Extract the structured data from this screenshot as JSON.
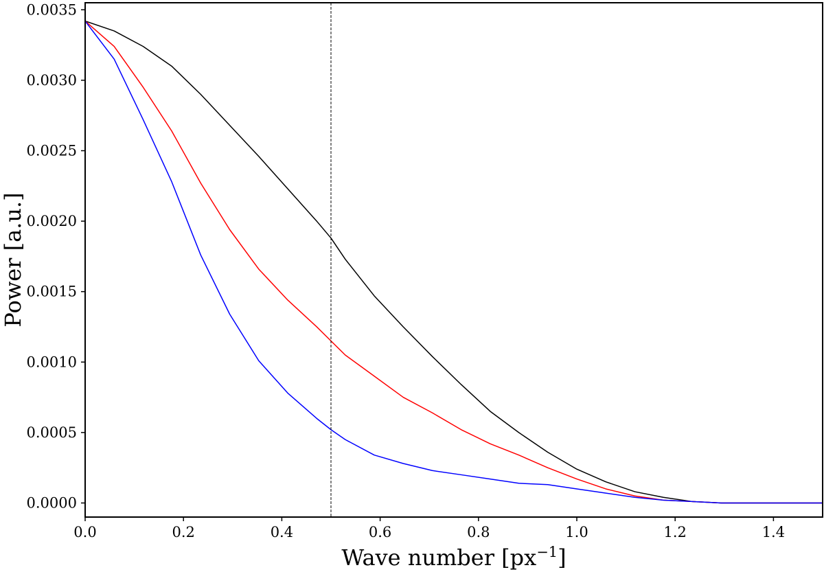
{
  "chart_data": {
    "type": "line",
    "xlabel": "Wave number [px",
    "xlabel_superscript": "−1",
    "xlabel_suffix": "]",
    "ylabel": "Power [a.u.]",
    "xlim": [
      0.0,
      1.5
    ],
    "ylim": [
      -0.0001,
      0.00355
    ],
    "xticks": [
      0.0,
      0.2,
      0.4,
      0.6,
      0.8,
      1.0,
      1.2,
      1.4
    ],
    "xtick_labels": [
      "0.0",
      "0.2",
      "0.4",
      "0.6",
      "0.8",
      "1.0",
      "1.2",
      "1.4"
    ],
    "yticks": [
      0.0,
      0.0005,
      0.001,
      0.0015,
      0.002,
      0.0025,
      0.003,
      0.0035
    ],
    "ytick_labels": [
      "0.0000",
      "0.0005",
      "0.0010",
      "0.0015",
      "0.0020",
      "0.0025",
      "0.0030",
      "0.0035"
    ],
    "grid": false,
    "vline": {
      "x": 0.5,
      "style": "dashed",
      "color": "#000000"
    },
    "series": [
      {
        "color": "#000000",
        "x": [
          0.0,
          0.059,
          0.118,
          0.176,
          0.235,
          0.294,
          0.353,
          0.412,
          0.471,
          0.5,
          0.529,
          0.588,
          0.647,
          0.706,
          0.765,
          0.824,
          0.882,
          0.941,
          1.0,
          1.059,
          1.118,
          1.176,
          1.235,
          1.294,
          1.353,
          1.412,
          1.5
        ],
        "values": [
          0.00342,
          0.00335,
          0.00324,
          0.0031,
          0.0029,
          0.00268,
          0.00246,
          0.00223,
          0.002,
          0.00188,
          0.00173,
          0.00147,
          0.00125,
          0.00104,
          0.00084,
          0.00065,
          0.0005,
          0.00036,
          0.00024,
          0.00015,
          8e-05,
          4e-05,
          1e-05,
          0.0,
          0.0,
          0.0,
          0.0
        ]
      },
      {
        "color": "#ff0000",
        "x": [
          0.0,
          0.059,
          0.118,
          0.176,
          0.235,
          0.294,
          0.353,
          0.412,
          0.471,
          0.5,
          0.529,
          0.588,
          0.647,
          0.706,
          0.765,
          0.824,
          0.882,
          0.941,
          1.0,
          1.059,
          1.118,
          1.176,
          1.235,
          1.294,
          1.353,
          1.412,
          1.5
        ],
        "values": [
          0.00342,
          0.00324,
          0.00295,
          0.00264,
          0.00227,
          0.00194,
          0.00166,
          0.00144,
          0.00125,
          0.00115,
          0.00105,
          0.0009,
          0.00075,
          0.00064,
          0.00052,
          0.00042,
          0.00034,
          0.00025,
          0.00017,
          0.0001,
          5e-05,
          2e-05,
          1e-05,
          0.0,
          0.0,
          0.0,
          0.0
        ]
      },
      {
        "color": "#0000ff",
        "x": [
          0.0,
          0.059,
          0.118,
          0.176,
          0.235,
          0.294,
          0.353,
          0.412,
          0.471,
          0.5,
          0.529,
          0.588,
          0.647,
          0.706,
          0.765,
          0.824,
          0.882,
          0.941,
          1.0,
          1.059,
          1.118,
          1.176,
          1.235,
          1.294,
          1.353,
          1.412,
          1.5
        ],
        "values": [
          0.00342,
          0.00315,
          0.00272,
          0.00228,
          0.00176,
          0.00134,
          0.00101,
          0.00078,
          0.0006,
          0.00052,
          0.00045,
          0.00034,
          0.00028,
          0.00023,
          0.0002,
          0.00017,
          0.00014,
          0.00013,
          0.0001,
          7e-05,
          4e-05,
          2e-05,
          1e-05,
          0.0,
          0.0,
          0.0,
          0.0
        ]
      }
    ]
  }
}
